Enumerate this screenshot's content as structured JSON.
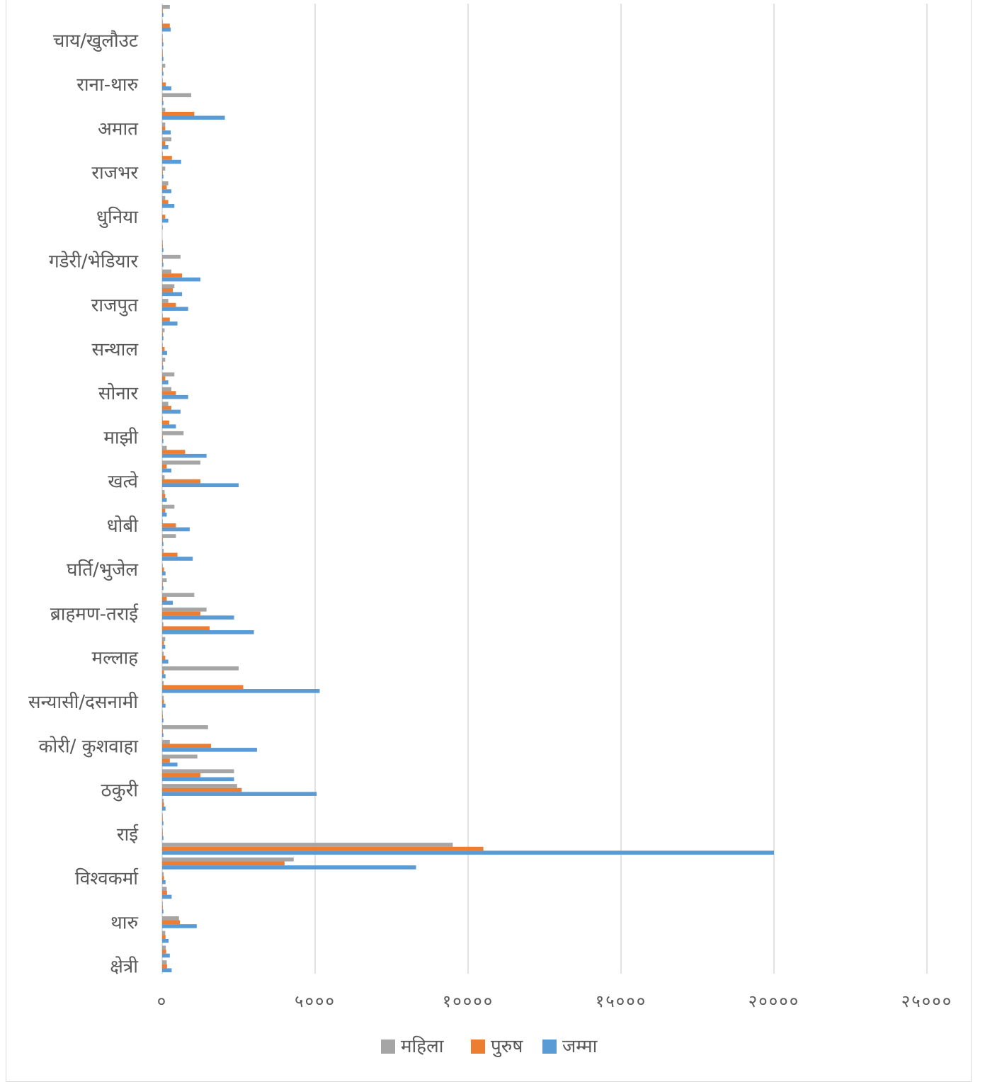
{
  "chart_data": {
    "type": "bar",
    "orientation": "horizontal",
    "xlim": [
      0,
      25000
    ],
    "grid": true,
    "legend_placement": "bottom",
    "x_ticks": [
      "०",
      "५०००",
      "१००००",
      "१५०००",
      "२००००",
      "२५०००"
    ],
    "categories": [
      "क्षेत्री",
      "",
      "",
      "थारु",
      "",
      "",
      "विश्वकर्मा",
      "",
      "",
      "राई",
      "",
      "",
      "ठकुरी",
      "",
      "",
      "कोरी/ कुशवाहा",
      "",
      "",
      "सन्यासी/दसनामी",
      "",
      "",
      "मल्लाह",
      "",
      "",
      "ब्राहमण-तराई",
      "",
      "",
      "घर्ति/भुजेल",
      "",
      "",
      "धोबी",
      "",
      "",
      "खत्वे",
      "",
      "",
      "माझी",
      "",
      "",
      "सोनार",
      "",
      "",
      "सन्थाल",
      "",
      "",
      "राजपुत",
      "",
      "",
      "गडेरी/भेडियार",
      "",
      "",
      "धुनिया",
      "",
      "",
      "राजभर",
      "",
      "",
      "अमात",
      "",
      "",
      "राना-थारु",
      "",
      "",
      "चाय/खुलौउट",
      "",
      ""
    ],
    "series": [
      {
        "name": "महिला",
        "color": "#a5a5a5",
        "values": [
          150,
          120,
          100,
          550,
          20,
          150,
          50,
          4300,
          9500,
          20,
          20,
          50,
          2450,
          2350,
          1150,
          250,
          1500,
          20,
          50,
          50,
          2500,
          50,
          100,
          40,
          1450,
          1050,
          150,
          20,
          50,
          450,
          20,
          400,
          80,
          80,
          1250,
          150,
          700,
          20,
          200,
          300,
          400,
          100,
          20,
          80,
          20,
          200,
          400,
          300,
          600,
          20,
          20,
          0,
          100,
          200,
          100,
          20,
          300,
          100,
          100,
          950,
          20,
          100,
          20,
          20,
          20,
          250
        ]
      },
      {
        "name": "पुरुष",
        "color": "#ed7d31",
        "values": [
          160,
          130,
          110,
          580,
          20,
          160,
          60,
          4000,
          10500,
          20,
          20,
          60,
          2600,
          1250,
          250,
          1600,
          20,
          20,
          60,
          2650,
          60,
          100,
          60,
          1550,
          1250,
          150,
          20,
          60,
          500,
          20,
          450,
          100,
          100,
          1250,
          150,
          750,
          20,
          230,
          300,
          450,
          100,
          20,
          80,
          20,
          250,
          450,
          350,
          650,
          20,
          20,
          0,
          100,
          200,
          150,
          20,
          320,
          100,
          100,
          1050,
          20,
          120,
          20,
          20,
          20,
          250,
          20
        ]
      },
      {
        "name": "जम्मा",
        "color": "#5b9bd5",
        "values": [
          310,
          250,
          210,
          1130,
          40,
          310,
          110,
          8300,
          20000,
          40,
          40,
          110,
          5050,
          2350,
          500,
          3100,
          40,
          40,
          110,
          5150,
          110,
          200,
          100,
          3000,
          2350,
          350,
          40,
          110,
          1000,
          40,
          900,
          150,
          150,
          2500,
          300,
          1450,
          40,
          450,
          600,
          850,
          200,
          40,
          160,
          40,
          500,
          850,
          650,
          1250,
          40,
          40,
          0,
          200,
          400,
          300,
          40,
          620,
          200,
          280,
          2050,
          40,
          300,
          40,
          40,
          40,
          280,
          40
        ]
      }
    ]
  }
}
